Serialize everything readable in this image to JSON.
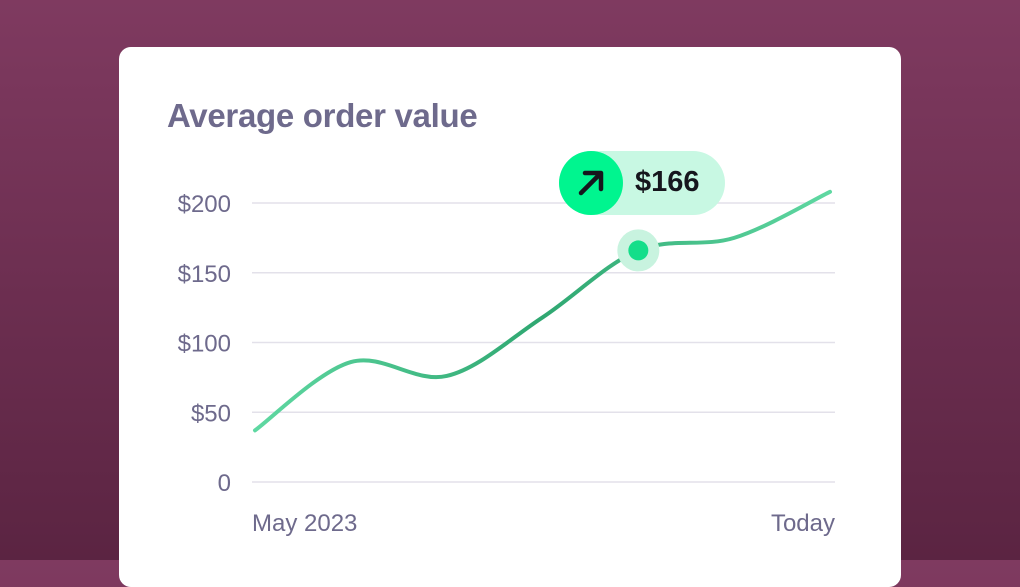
{
  "chart_data": {
    "type": "line",
    "title": "Average order value",
    "x_labels": [
      "May 2023",
      "Today"
    ],
    "x": [
      0,
      1,
      2,
      3,
      4,
      5,
      6
    ],
    "values": [
      37,
      86,
      76,
      118,
      166,
      175,
      208
    ],
    "highlight": {
      "index": 4,
      "label": "$166",
      "icon": "arrow-up-right-icon"
    },
    "yticks": [
      0,
      50,
      100,
      150,
      200
    ],
    "ytick_labels": [
      "0",
      "$50",
      "$100",
      "$150",
      "$200"
    ],
    "ylim": [
      0,
      200
    ],
    "grid": true,
    "colors": {
      "line_light": "#5fd8a2",
      "line_dark": "#2fa771",
      "point": "#14de8a",
      "badge": "#00f58f",
      "badge_bg": "#c8f8e3",
      "text": "#6e6a8c"
    }
  }
}
